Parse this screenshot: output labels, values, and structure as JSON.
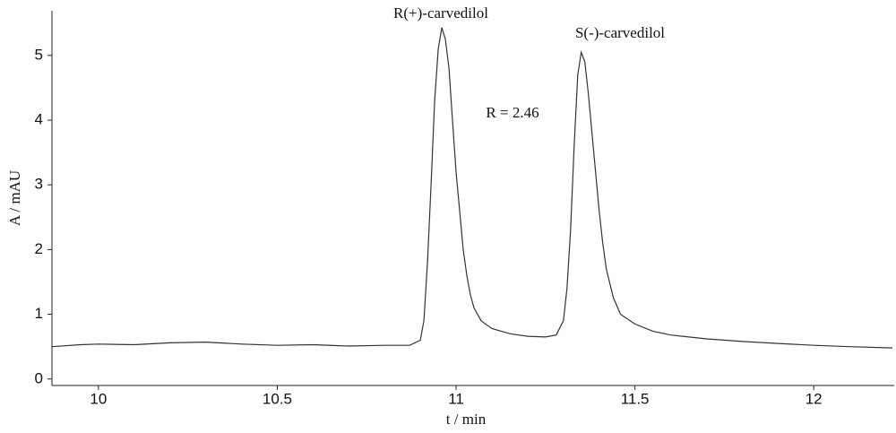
{
  "chart_data": {
    "type": "line",
    "x_label": "t / min",
    "y_label": "A / mAU",
    "annotations": [
      "R(+)-carvedilol",
      "S(-)-carvedilol",
      "R = 2.46"
    ],
    "x": [
      9.87,
      9.95,
      10.0,
      10.1,
      10.2,
      10.3,
      10.4,
      10.5,
      10.6,
      10.7,
      10.8,
      10.87,
      10.9,
      10.91,
      10.92,
      10.93,
      10.94,
      10.95,
      10.96,
      10.97,
      10.98,
      10.99,
      11.0,
      11.01,
      11.02,
      11.03,
      11.04,
      11.05,
      11.07,
      11.1,
      11.15,
      11.2,
      11.25,
      11.28,
      11.3,
      11.31,
      11.32,
      11.33,
      11.34,
      11.35,
      11.36,
      11.37,
      11.38,
      11.39,
      11.4,
      11.41,
      11.42,
      11.44,
      11.46,
      11.5,
      11.55,
      11.6,
      11.7,
      11.8,
      11.9,
      12.0,
      12.1,
      12.22
    ],
    "series": [
      {
        "color": "#333333",
        "values": [
          0.5,
          0.53,
          0.54,
          0.53,
          0.56,
          0.57,
          0.54,
          0.52,
          0.53,
          0.51,
          0.52,
          0.52,
          0.6,
          0.9,
          1.8,
          3.0,
          4.3,
          5.1,
          5.43,
          5.25,
          4.8,
          4.0,
          3.2,
          2.6,
          2.0,
          1.6,
          1.3,
          1.1,
          0.9,
          0.78,
          0.7,
          0.66,
          0.65,
          0.68,
          0.9,
          1.4,
          2.3,
          3.6,
          4.7,
          5.05,
          4.9,
          4.4,
          3.8,
          3.2,
          2.6,
          2.1,
          1.7,
          1.25,
          1.0,
          0.85,
          0.74,
          0.68,
          0.62,
          0.58,
          0.55,
          0.52,
          0.5,
          0.48
        ]
      }
    ],
    "xlim": [
      9.87,
      12.225
    ],
    "ylim": [
      -0.1,
      5.69
    ],
    "xticks": [
      10,
      10.5,
      11,
      11.5,
      12
    ],
    "yticks": [
      0,
      1,
      2,
      3,
      4,
      5
    ],
    "grid": false
  }
}
